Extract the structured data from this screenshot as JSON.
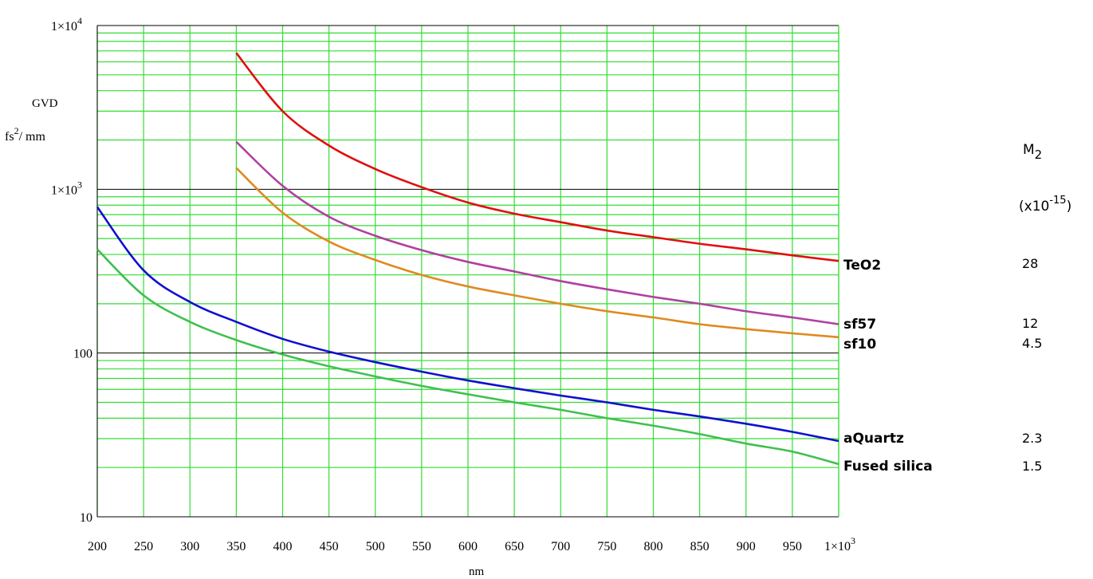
{
  "chart_data": {
    "type": "line",
    "xlabel": "nm",
    "ylabel_line1": "GVD",
    "ylabel_unit_base": "fs",
    "ylabel_unit_sup": "2",
    "ylabel_unit_tail": "/ mm",
    "x_scale": "linear",
    "y_scale": "log",
    "xlim": [
      200,
      1000
    ],
    "ylim": [
      10,
      10000
    ],
    "grid": true,
    "x_ticks": [
      {
        "value": 200,
        "label": "200"
      },
      {
        "value": 250,
        "label": "250"
      },
      {
        "value": 300,
        "label": "300"
      },
      {
        "value": 350,
        "label": "350"
      },
      {
        "value": 400,
        "label": "400"
      },
      {
        "value": 450,
        "label": "450"
      },
      {
        "value": 500,
        "label": "500"
      },
      {
        "value": 550,
        "label": "550"
      },
      {
        "value": 600,
        "label": "600"
      },
      {
        "value": 650,
        "label": "650"
      },
      {
        "value": 700,
        "label": "700"
      },
      {
        "value": 750,
        "label": "750"
      },
      {
        "value": 800,
        "label": "800"
      },
      {
        "value": 850,
        "label": "850"
      },
      {
        "value": 900,
        "label": "900"
      },
      {
        "value": 950,
        "label": "950"
      },
      {
        "value": 1000,
        "label": "1×10",
        "sup": "3"
      }
    ],
    "y_ticks": [
      {
        "value": 10,
        "label": "10",
        "sup": ""
      },
      {
        "value": 100,
        "label": "100",
        "sup": ""
      },
      {
        "value": 1000,
        "label": "1×10",
        "sup": "3"
      },
      {
        "value": 10000,
        "label": "1×10",
        "sup": "4"
      }
    ],
    "m2_header": "M",
    "m2_header_sub": "2",
    "m2_unit_base": "(x10",
    "m2_unit_sup": "-15",
    "m2_unit_tail": ")",
    "series": [
      {
        "name": "TeO2",
        "m2": "28",
        "color": "#e01010",
        "x": [
          350,
          400,
          450,
          500,
          550,
          600,
          650,
          700,
          750,
          800,
          850,
          900,
          950,
          1000
        ],
        "y": [
          6800,
          3000,
          1850,
          1330,
          1030,
          830,
          710,
          630,
          560,
          510,
          465,
          430,
          395,
          365
        ]
      },
      {
        "name": "sf57",
        "m2": "12",
        "color": "#b040a0",
        "x": [
          350,
          400,
          450,
          500,
          550,
          600,
          650,
          700,
          750,
          800,
          850,
          900,
          950,
          1000
        ],
        "y": [
          1950,
          1050,
          680,
          520,
          425,
          360,
          315,
          275,
          245,
          220,
          200,
          180,
          165,
          150
        ]
      },
      {
        "name": "sf10",
        "m2": "4.5",
        "color": "#e08a20",
        "x": [
          350,
          400,
          450,
          500,
          550,
          600,
          650,
          700,
          750,
          800,
          850,
          900,
          950,
          1000
        ],
        "y": [
          1350,
          720,
          480,
          370,
          300,
          255,
          225,
          200,
          180,
          165,
          150,
          140,
          132,
          125
        ]
      },
      {
        "name": "aQuartz",
        "m2": "2.3",
        "color": "#1010d0",
        "x": [
          200,
          250,
          300,
          350,
          400,
          450,
          500,
          550,
          600,
          650,
          700,
          750,
          800,
          850,
          900,
          950,
          1000
        ],
        "y": [
          780,
          320,
          205,
          155,
          122,
          102,
          88,
          77,
          68,
          61,
          55,
          50,
          45,
          41,
          37,
          33,
          29
        ]
      },
      {
        "name": "Fused silica",
        "m2": "1.5",
        "color": "#40c050",
        "x": [
          200,
          250,
          300,
          350,
          400,
          450,
          500,
          550,
          600,
          650,
          700,
          750,
          800,
          850,
          900,
          950,
          1000
        ],
        "y": [
          430,
          225,
          155,
          120,
          98,
          83,
          72,
          63,
          56,
          50,
          45,
          40,
          36,
          32,
          28,
          25,
          21
        ]
      }
    ]
  }
}
